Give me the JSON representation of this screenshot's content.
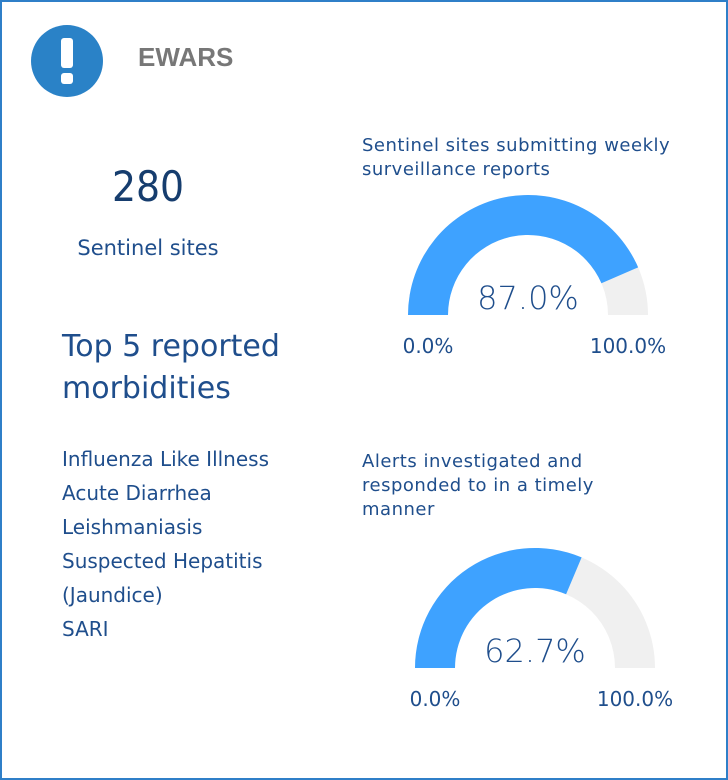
{
  "header": {
    "title": "EWARS"
  },
  "summary": {
    "value": "280",
    "label": "Sentinel sites"
  },
  "morbidities": {
    "title": "Top 5 reported morbidities",
    "items": [
      "Influenza Like Illness",
      "Acute Diarrhea",
      "Leishmaniasis",
      "Suspected Hepatitis (Jaundice)",
      "SARI"
    ]
  },
  "chart_data": [
    {
      "type": "gauge",
      "title": "Sentinel sites submitting weekly surveillance reports",
      "values": [
        87.0
      ],
      "value_labels": [
        "87.0%"
      ],
      "color": "#3ea2ff",
      "track_color": "#f0f0f0",
      "xlim": [
        0,
        100
      ],
      "xticks": [
        {
          "value": 0,
          "label": "0.0%"
        },
        {
          "value": 100,
          "label": "100.0%"
        }
      ]
    },
    {
      "type": "gauge",
      "title": "Alerts investigated and responded to in a timely manner",
      "values": [
        62.7
      ],
      "value_labels": [
        "62.7%"
      ],
      "color": "#3ea2ff",
      "track_color": "#f0f0f0",
      "xlim": [
        0,
        100
      ],
      "xticks": [
        {
          "value": 0,
          "label": "0.0%"
        },
        {
          "value": 100,
          "label": "100.0%"
        }
      ]
    }
  ]
}
